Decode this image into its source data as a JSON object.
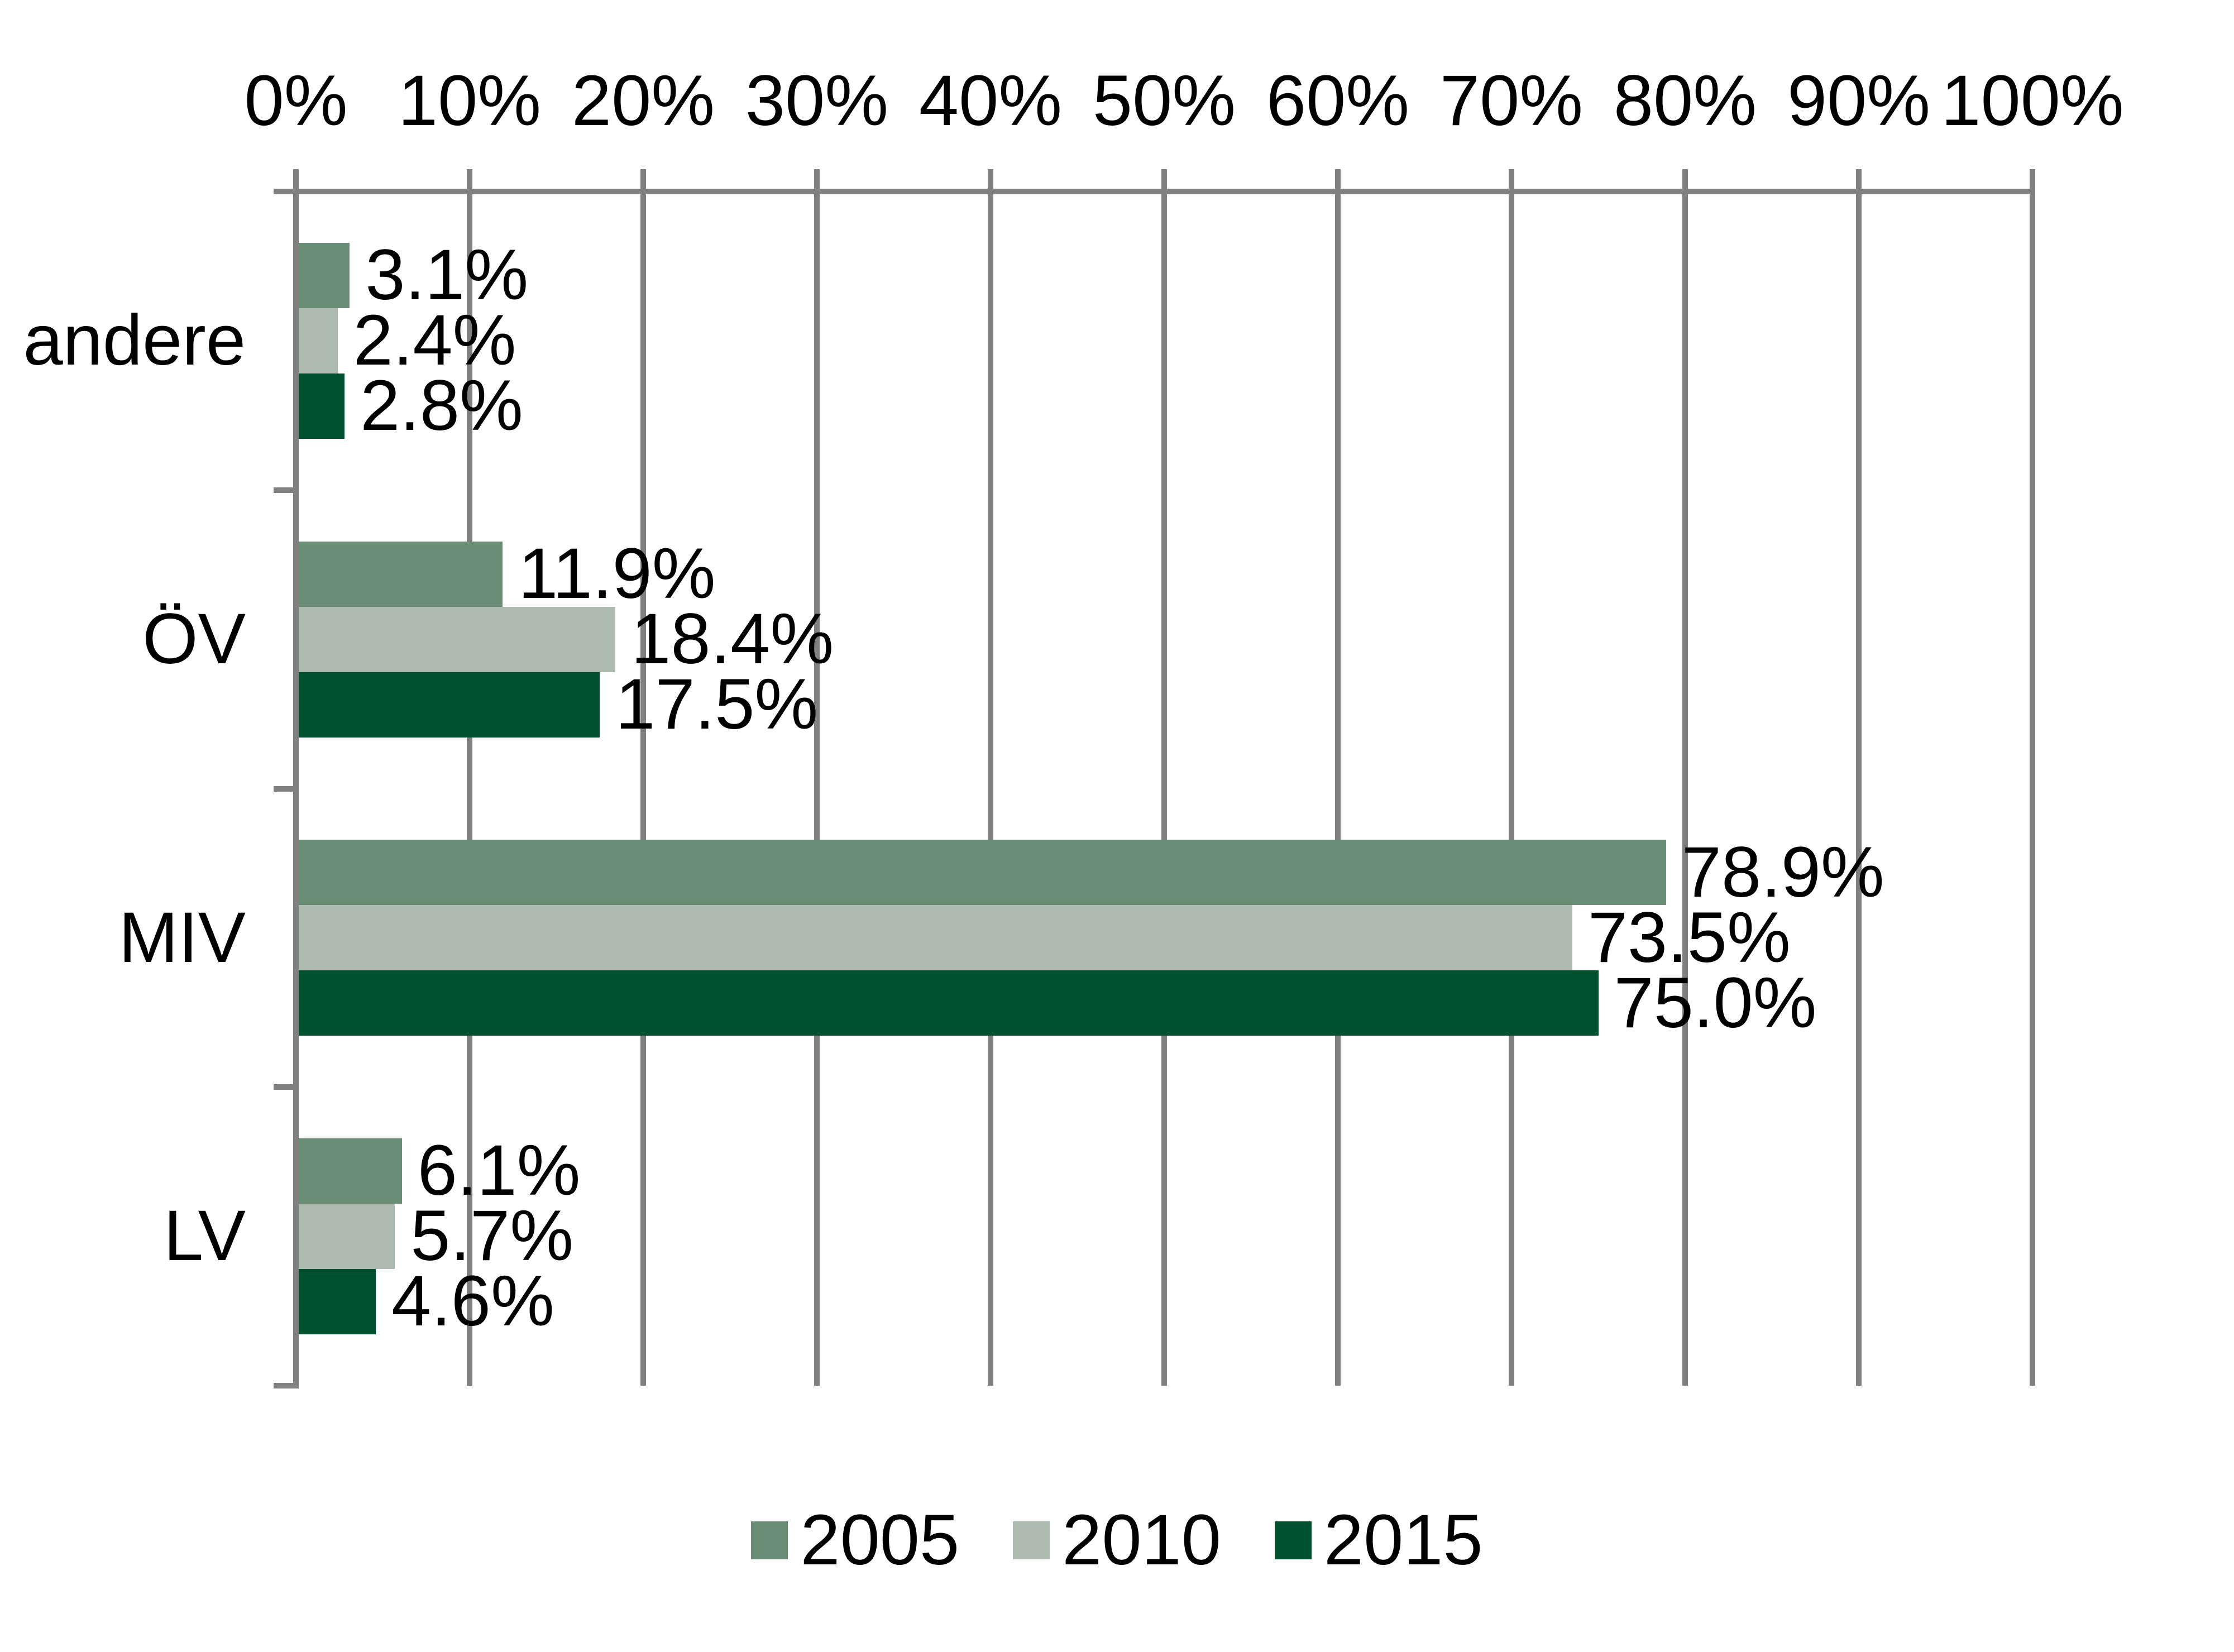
{
  "chart_data": {
    "type": "bar",
    "orientation": "horizontal",
    "title": "",
    "xlabel": "",
    "ylabel": "",
    "categories": [
      "andere",
      "ÖV",
      "MIV",
      "LV"
    ],
    "series": [
      {
        "name": "2005",
        "color": "#698D75",
        "values": [
          3.1,
          11.9,
          78.9,
          6.1
        ],
        "labels": [
          "3.1%",
          "11.9%",
          "78.9%",
          "6.1%"
        ]
      },
      {
        "name": "2010",
        "color": "#ACBAAF",
        "values": [
          2.4,
          18.4,
          73.5,
          5.7
        ],
        "labels": [
          "2.4%",
          "18.4%",
          "73.5%",
          "5.7%"
        ]
      },
      {
        "name": "2015",
        "color": "#00522F",
        "values": [
          2.8,
          17.5,
          75.0,
          4.6
        ],
        "labels": [
          "2.8%",
          "17.5%",
          "75.0%",
          "4.6%"
        ]
      }
    ],
    "axis": {
      "min": 0,
      "max": 100,
      "step": 10,
      "tick_labels": [
        "0%",
        "10%",
        "20%",
        "30%",
        "40%",
        "50%",
        "60%",
        "70%",
        "80%",
        "90%",
        "100%"
      ],
      "position": "top"
    },
    "grid": {
      "show": true,
      "color": "#808080"
    },
    "legend": {
      "position": "bottom",
      "entries": [
        "2005",
        "2010",
        "2015"
      ]
    },
    "value_suffix": "%",
    "decimals": 1,
    "text_color": "#000000",
    "background_color": "#ffffff"
  }
}
